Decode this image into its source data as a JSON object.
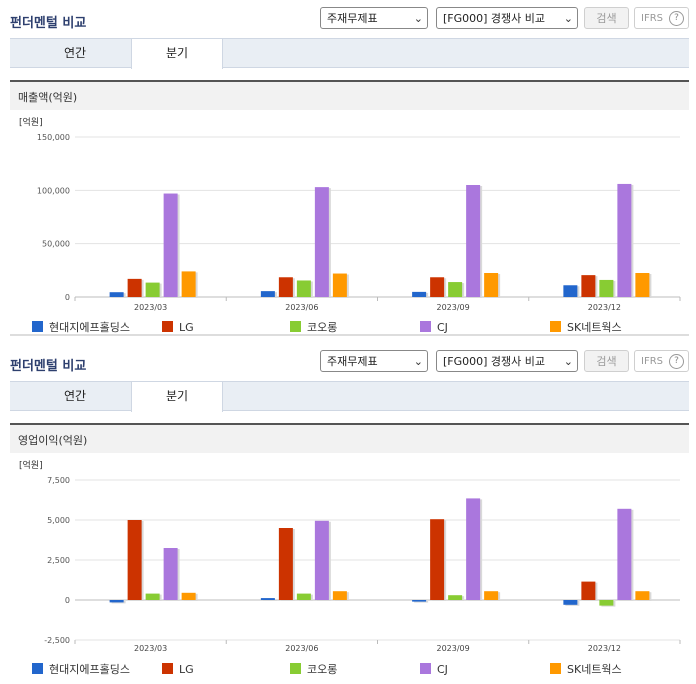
{
  "header": {
    "title": "펀더멘털 비교",
    "select_1": "주재무제표",
    "select_2": "[FG000] 경쟁사 비교",
    "search_label": "검색",
    "ifrs_label": "IFRS",
    "help_glyph": "?",
    "dropdown_glyph": "⌄"
  },
  "tabs": [
    {
      "label": "연간",
      "active": false
    },
    {
      "label": "분기",
      "active": true
    }
  ],
  "colors": [
    "#2266cc",
    "#cc3300",
    "#88cc33",
    "#aa77dd",
    "#ff9900"
  ],
  "chart_data": [
    {
      "type": "bar",
      "title": "매출액(억원)",
      "unit_label": "[억원]",
      "categories": [
        "2023/03",
        "2023/06",
        "2023/09",
        "2023/12"
      ],
      "ylim": [
        0,
        150000
      ],
      "yticks": [
        0,
        50000,
        100000,
        150000
      ],
      "ytick_labels": [
        "0",
        "50,000",
        "100,000",
        "150,000"
      ],
      "grid": true,
      "legend_position": "bottom",
      "series": [
        {
          "name": "현대지에프홀딩스",
          "values": [
            4500,
            5500,
            4800,
            11000
          ]
        },
        {
          "name": "LG",
          "values": [
            17000,
            18500,
            18500,
            20500
          ]
        },
        {
          "name": "코오롱",
          "values": [
            13500,
            15500,
            14000,
            16000
          ]
        },
        {
          "name": "CJ",
          "values": [
            97000,
            103000,
            105000,
            106000
          ]
        },
        {
          "name": "SK네트웍스",
          "values": [
            24000,
            22000,
            22500,
            22500
          ]
        }
      ]
    },
    {
      "type": "bar",
      "title": "영업이익(억원)",
      "unit_label": "[억원]",
      "categories": [
        "2023/03",
        "2023/06",
        "2023/09",
        "2023/12"
      ],
      "ylim": [
        -2500,
        7500
      ],
      "yticks": [
        -2500,
        0,
        2500,
        5000,
        7500
      ],
      "ytick_labels": [
        "-2,500",
        "0",
        "2,500",
        "5,000",
        "7,500"
      ],
      "grid": true,
      "legend_position": "bottom",
      "series": [
        {
          "name": "현대지에프홀딩스",
          "values": [
            -150,
            120,
            -100,
            -300
          ]
        },
        {
          "name": "LG",
          "values": [
            5000,
            4500,
            5050,
            1150
          ]
        },
        {
          "name": "코오롱",
          "values": [
            400,
            400,
            300,
            -350
          ]
        },
        {
          "name": "CJ",
          "values": [
            3250,
            4950,
            6350,
            5700
          ]
        },
        {
          "name": "SK네트웍스",
          "values": [
            450,
            550,
            550,
            550
          ]
        }
      ]
    }
  ]
}
